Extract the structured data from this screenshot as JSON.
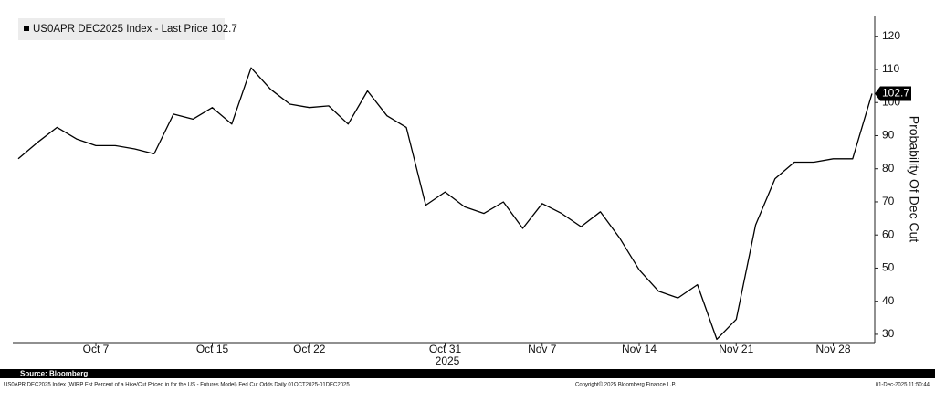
{
  "chart_data": {
    "type": "line",
    "categories": [
      null,
      null,
      null,
      null,
      "Oct 7",
      null,
      null,
      null,
      null,
      null,
      "Oct 15",
      null,
      null,
      null,
      null,
      "Oct 22",
      null,
      null,
      null,
      null,
      null,
      null,
      "Oct 31",
      null,
      null,
      null,
      null,
      "Nov 7",
      null,
      null,
      null,
      null,
      "Nov 14",
      null,
      null,
      null,
      null,
      "Nov 21",
      null,
      null,
      null,
      null,
      "Nov 28",
      null,
      null
    ],
    "year_label": "2025",
    "series": [
      {
        "name": "US0APR DEC2025 Index - Last Price 102.7",
        "color": "#000000",
        "values": [
          83,
          88,
          92.5,
          89,
          87,
          87,
          86,
          84.5,
          96.5,
          95,
          98.5,
          93.5,
          110.5,
          104,
          99.5,
          98.5,
          99,
          93.5,
          103.5,
          96,
          92.5,
          69,
          73,
          68.5,
          66.5,
          70,
          62,
          69.5,
          66.5,
          62.5,
          67,
          59,
          49.5,
          43,
          41,
          45,
          28.5,
          34.5,
          63,
          77,
          82,
          82,
          83,
          83,
          102.7
        ]
      }
    ],
    "y_label": "Probability Of Dec Cut",
    "ylim": [
      27.5,
      126
    ],
    "yticks": [
      30,
      40,
      50,
      60,
      70,
      80,
      90,
      100,
      110,
      120
    ],
    "grid": false,
    "source": "Source: Bloomberg",
    "footnote": "US0APR DEC2025 Index (WIRP Est Percent of a Hike/Cut Priced in for the US - Futures Model) Fed Cut Odds Daily 01OCT2025-01DEC2025",
    "copyright": "Copyright© 2025 Bloomberg Finance L.P.",
    "timestamp": "01-Dec-2025 11:50:44"
  }
}
